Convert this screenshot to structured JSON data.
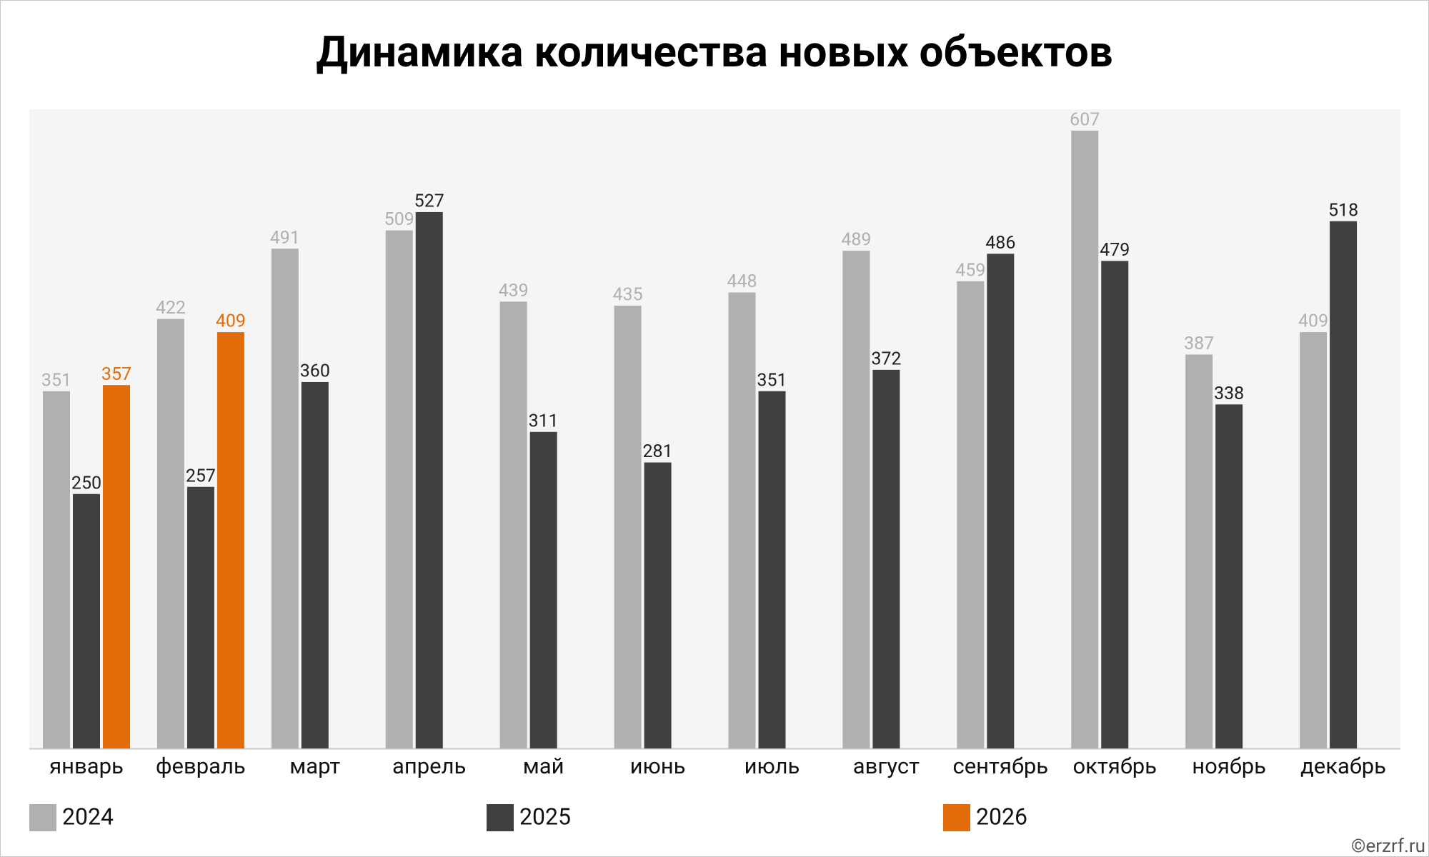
{
  "chart_data": {
    "type": "bar",
    "title": "Динамика количества новых объектов",
    "categories": [
      "январь",
      "февраль",
      "март",
      "апрель",
      "май",
      "июнь",
      "июль",
      "август",
      "сентябрь",
      "октябрь",
      "ноябрь",
      "декабрь"
    ],
    "series": [
      {
        "name": "2024",
        "color": "#b0b0b0",
        "values": [
          351,
          422,
          491,
          509,
          439,
          435,
          448,
          489,
          459,
          607,
          387,
          409
        ]
      },
      {
        "name": "2025",
        "color": "#404040",
        "values": [
          250,
          257,
          360,
          527,
          311,
          281,
          351,
          372,
          486,
          479,
          338,
          518
        ]
      },
      {
        "name": "2026",
        "color": "#e36c0a",
        "values": [
          357,
          409,
          null,
          null,
          null,
          null,
          null,
          null,
          null,
          null,
          null,
          null
        ]
      }
    ],
    "ylim": [
      0,
      628
    ],
    "grid": false,
    "legend": "bottom",
    "source": "©erzrf.ru"
  }
}
